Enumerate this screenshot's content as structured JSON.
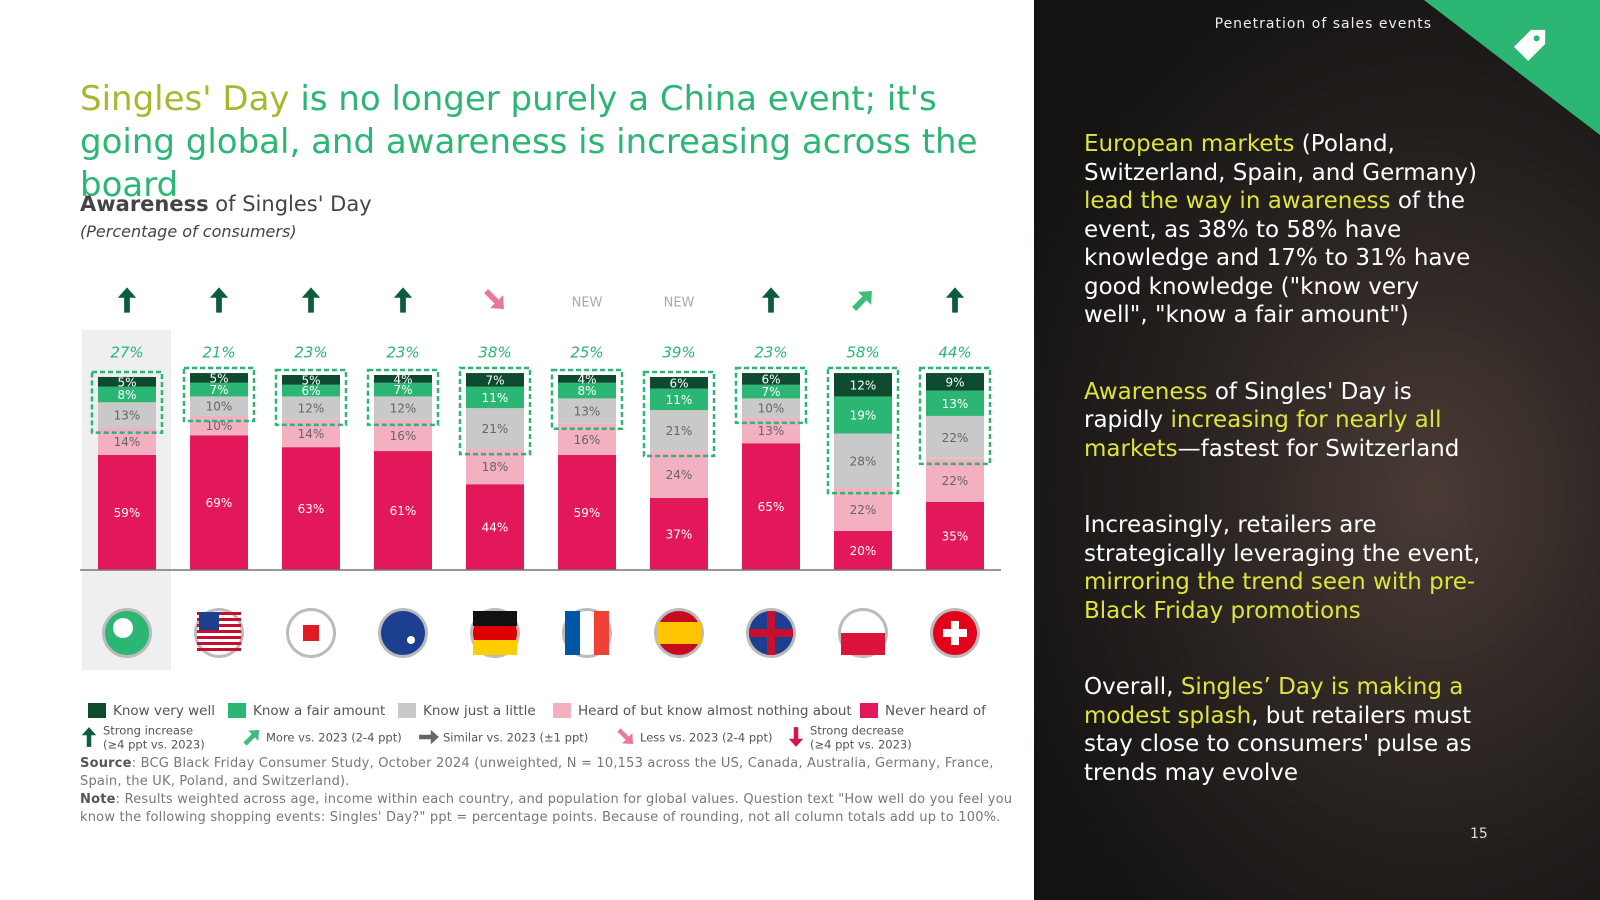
{
  "header": {
    "section": "Penetration of sales events",
    "title": [
      {
        "text": "Singles' Day",
        "color": "#a8b82e"
      },
      {
        "text": " is no longer purely a China event; it's going global, and awareness is increasing across the board",
        "color": "#2bb673"
      }
    ],
    "page_number": "15"
  },
  "chart_data": {
    "type": "stacked_bar",
    "title": "Awareness",
    "title_rest": " of Singles' Day",
    "subtitle": "(Percentage of consumers)",
    "categories": [
      null,
      null,
      null,
      null,
      null,
      null,
      null,
      null,
      null,
      null
    ],
    "series": [
      {
        "name": "Know very well",
        "color": "#0d4a2e",
        "values": [
          5,
          5,
          5,
          4,
          7,
          4,
          6,
          6,
          12,
          9
        ],
        "value_labels": [
          "5%",
          "5%",
          "5%",
          "4%",
          "7%",
          "4%",
          "6%",
          "6%",
          "12%",
          "9%"
        ]
      },
      {
        "name": "Know a fair amount",
        "color": "#2bb673",
        "values": [
          8,
          7,
          6,
          7,
          11,
          8,
          11,
          7,
          19,
          13
        ],
        "value_labels": [
          "8%",
          "7%",
          "6%",
          "7%",
          "11%",
          "8%",
          "11%",
          "7%",
          "19%",
          "13%"
        ]
      },
      {
        "name": "Know just a little",
        "color": "#c9c9c9",
        "values": [
          13,
          10,
          12,
          12,
          21,
          13,
          21,
          10,
          28,
          22
        ],
        "value_labels": [
          "13%",
          "10%",
          "12%",
          "12%",
          "21%",
          "13%",
          "21%",
          "10%",
          "28%",
          "22%"
        ]
      },
      {
        "name": "Heard of but know almost nothing about",
        "color": "#f2b0c1",
        "values": [
          14,
          10,
          14,
          16,
          18,
          16,
          24,
          13,
          22,
          22
        ],
        "value_labels": [
          "14%",
          "10%",
          "14%",
          "16%",
          "18%",
          "16%",
          "24%",
          "13%",
          "22%",
          "22%"
        ]
      },
      {
        "name": "Never heard of",
        "color": "#e3185b",
        "values": [
          59,
          69,
          63,
          61,
          44,
          59,
          37,
          65,
          20,
          35
        ],
        "value_labels": [
          "59%",
          "69%",
          "63%",
          "61%",
          "44%",
          "59%",
          "37%",
          "65%",
          "20%",
          "35%"
        ]
      }
    ],
    "totals": {
      "values": [
        27,
        21,
        23,
        23,
        38,
        25,
        39,
        23,
        58,
        44
      ],
      "value_labels": [
        "27%",
        "21%",
        "23%",
        "23%",
        "38%",
        "25%",
        "39%",
        "23%",
        "58%",
        "44%"
      ]
    },
    "trends": [
      0,
      0,
      0,
      0,
      3,
      "NEW",
      "NEW",
      0,
      1,
      0
    ],
    "trend_legend": [
      {
        "lines": [
          "Strong increase",
          "(≥4 ppt vs. 2023)"
        ],
        "color": "#0b5d3b"
      },
      {
        "lines": [
          "More vs. 2023 (2-4 ppt)"
        ],
        "color": "#3dbd7a"
      },
      {
        "lines": [
          "Similar vs. 2023 (±1 ppt)"
        ],
        "color": "#666666"
      },
      {
        "lines": [
          "Less vs. 2023 (2-4 ppt)"
        ],
        "color": "#e8769e"
      },
      {
        "lines": [
          "Strong decrease",
          "(≥4 ppt vs. 2023)"
        ],
        "color": "#d6124f"
      }
    ]
  },
  "footnotes": {
    "source_label": "Source",
    "source": ": BCG Black Friday Consumer Study, October 2024 (unweighted, N = 10,153 across the US, Canada, Australia, Germany, France, Spain, the UK, Poland, and Switzerland).",
    "note_label": "Note",
    "note": ": Results weighted across age, income within each country, and population for global values. Question text \"How well do you feel you know the following shopping events: Singles' Day?\" ppt = percentage points. Because of rounding, not all column totals add up to 100%."
  },
  "sidebar": {
    "paragraphs": [
      [
        {
          "text": "European markets",
          "highlight": true
        },
        {
          "text": " (Poland, Switzerland, Spain, and Germany) ",
          "highlight": false
        },
        {
          "text": "lead the way in awareness",
          "highlight": true
        },
        {
          "text": " of the event, as 38% to 58% have knowledge and 17% to 31% have good knowledge (\"know very well\", \"know a fair amount\")",
          "highlight": false
        }
      ],
      [
        {
          "text": "Awareness",
          "highlight": true
        },
        {
          "text": " of Singles' Day is rapidly ",
          "highlight": false
        },
        {
          "text": "increasing for nearly all markets",
          "highlight": true
        },
        {
          "text": "—fastest for Switzerland",
          "highlight": false
        }
      ],
      [
        {
          "text": "Increasingly, retailers are strategically leveraging the event, ",
          "highlight": false
        },
        {
          "text": "mirroring the trend seen with pre-Black Friday promotions",
          "highlight": true
        }
      ],
      [
        {
          "text": "Overall, ",
          "highlight": false
        },
        {
          "text": "Singles’ Day is making a modest splash",
          "highlight": true
        },
        {
          "text": ", but retailers must stay close to consumers' pulse as trends may evolve",
          "highlight": false
        }
      ]
    ]
  }
}
